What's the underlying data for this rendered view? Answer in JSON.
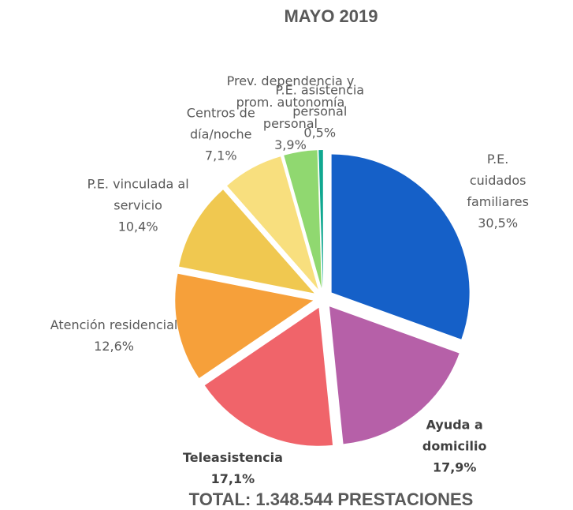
{
  "chart_data": {
    "type": "pie",
    "title": "MAYO 2019",
    "annotation": "TOTAL: 1.348.544 PRESTACIONES",
    "categories": [
      "P.E. cuidados\nfamiliares",
      "Ayuda a domicilio",
      "Teleasistencia",
      "Atención residencial",
      "P.E. vinculada al\nservicio",
      "Centros de\ndía/noche",
      "Prev. dependencia y\nprom. autonomía\npersonal",
      "P.E. asistencia\npersonal"
    ],
    "values": [
      30.5,
      17.9,
      17.1,
      12.6,
      10.4,
      7.1,
      3.9,
      0.5
    ],
    "value_labels": [
      "30,5%",
      "17,9%",
      "17,1%",
      "12,6%",
      "10,4%",
      "7,1%",
      "3,9%",
      "0,5%"
    ],
    "colors": [
      "#1560c8",
      "#b660a8",
      "#f0646a",
      "#f6a03a",
      "#f0c850",
      "#f8df7e",
      "#90d870",
      "#10a890"
    ],
    "label_bold": [
      false,
      true,
      true,
      false,
      false,
      false,
      false,
      false
    ]
  }
}
